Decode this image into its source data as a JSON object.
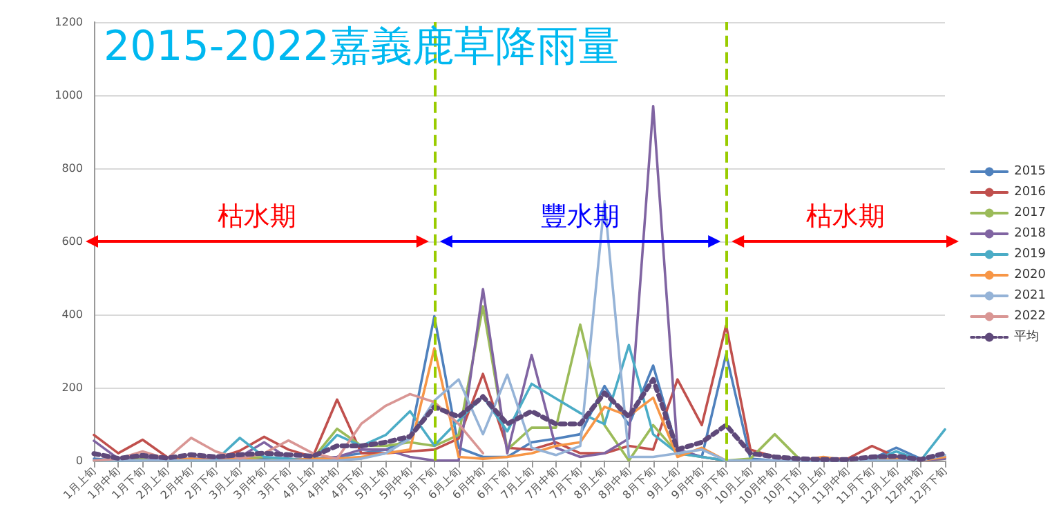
{
  "chart_data": {
    "type": "line",
    "title": "2015-2022嘉義鹿草降雨量",
    "categories": [
      "1月上旬",
      "1月中旬",
      "1月下旬",
      "2月上旬",
      "2月中旬",
      "2月下旬",
      "3月上旬",
      "3月中旬",
      "3月下旬",
      "4月上旬",
      "4月中旬",
      "4月下旬",
      "5月上旬",
      "5月中旬",
      "5月下旬",
      "6月上旬",
      "6月中旬",
      "6月下旬",
      "7月上旬",
      "7月中旬",
      "7月下旬",
      "8月上旬",
      "8月中旬",
      "8月下旬",
      "9月上旬",
      "9月中旬",
      "9月下旬",
      "10月上旬",
      "10月中旬",
      "10月下旬",
      "11月上旬",
      "11月中旬",
      "11月下旬",
      "12月上旬",
      "12月中旬",
      "12月下旬"
    ],
    "series": [
      {
        "name": "2015",
        "color": "#4f81bd",
        "values": [
          5,
          0,
          5,
          0,
          5,
          0,
          10,
          5,
          0,
          5,
          10,
          20,
          30,
          60,
          395,
          35,
          10,
          10,
          50,
          60,
          72,
          204,
          97,
          260,
          29,
          10,
          291,
          5,
          0,
          0,
          0,
          0,
          5,
          35,
          5,
          10
        ]
      },
      {
        "name": "2016",
        "color": "#c0504d",
        "values": [
          70,
          20,
          57,
          10,
          0,
          5,
          27,
          65,
          30,
          10,
          167,
          20,
          20,
          25,
          30,
          60,
          237,
          35,
          30,
          50,
          20,
          20,
          40,
          30,
          222,
          97,
          370,
          30,
          10,
          0,
          5,
          5,
          40,
          10,
          0,
          10
        ]
      },
      {
        "name": "2017",
        "color": "#9bbb59",
        "values": [
          0,
          0,
          5,
          0,
          0,
          0,
          5,
          10,
          0,
          5,
          87,
          40,
          40,
          50,
          40,
          70,
          422,
          30,
          90,
          90,
          372,
          97,
          0,
          97,
          20,
          10,
          0,
          5,
          72,
          5,
          0,
          0,
          0,
          0,
          0,
          5
        ]
      },
      {
        "name": "2018",
        "color": "#8064a2",
        "values": [
          54,
          5,
          10,
          0,
          5,
          5,
          10,
          50,
          5,
          0,
          10,
          30,
          30,
          10,
          0,
          0,
          469,
          20,
          289,
          35,
          10,
          20,
          60,
          970,
          30,
          10,
          0,
          0,
          0,
          0,
          0,
          0,
          0,
          5,
          0,
          5
        ]
      },
      {
        "name": "2019",
        "color": "#4bacc6",
        "values": [
          0,
          0,
          0,
          0,
          0,
          0,
          62,
          10,
          5,
          0,
          70,
          40,
          70,
          135,
          41,
          110,
          175,
          80,
          210,
          170,
          130,
          100,
          316,
          72,
          20,
          10,
          0,
          0,
          0,
          0,
          0,
          0,
          0,
          25,
          0,
          85
        ]
      },
      {
        "name": "2020",
        "color": "#f79646",
        "values": [
          null,
          null,
          0,
          0,
          5,
          0,
          5,
          0,
          0,
          5,
          5,
          10,
          20,
          30,
          307,
          10,
          5,
          10,
          20,
          40,
          50,
          147,
          122,
          172,
          10,
          35,
          0,
          0,
          0,
          0,
          10,
          0,
          0,
          5,
          0,
          10
        ]
      },
      {
        "name": "2021",
        "color": "#95b3d7",
        "values": [
          0,
          0,
          0,
          0,
          0,
          0,
          0,
          0,
          0,
          0,
          0,
          5,
          20,
          60,
          164,
          222,
          72,
          235,
          35,
          15,
          40,
          710,
          10,
          10,
          20,
          30,
          0,
          0,
          0,
          0,
          0,
          0,
          0,
          0,
          0,
          15
        ]
      },
      {
        "name": "2022",
        "color": "#d99694",
        "values": [
          0,
          5,
          25,
          5,
          62,
          25,
          5,
          20,
          55,
          20,
          5,
          101,
          150,
          182,
          160,
          100,
          20,
          null,
          null,
          null,
          null,
          null,
          null,
          null,
          null,
          null,
          null,
          null,
          null,
          null,
          null,
          null,
          null,
          null,
          null,
          null
        ]
      },
      {
        "name": "平均",
        "color": "#5f497a",
        "line_style": "dotted",
        "values": [
          19,
          6,
          14,
          7,
          16,
          10,
          16,
          20,
          16,
          12,
          40,
          40,
          50,
          66,
          147,
          120,
          175,
          100,
          135,
          100,
          100,
          185,
          120,
          222,
          30,
          50,
          97,
          20,
          10,
          5,
          3,
          3,
          10,
          12,
          3,
          20
        ]
      }
    ],
    "ylim": [
      0,
      1200
    ],
    "yticks": [
      0,
      200,
      400,
      600,
      800,
      1000,
      1200
    ],
    "grid": "y",
    "legend": "right",
    "marker": "none",
    "line_style": "solid",
    "ref_lines": [
      {
        "axis": "x",
        "value": "5月下旬",
        "color": "#99cc00",
        "line_style": "dashed"
      },
      {
        "axis": "x",
        "value": "9月下旬",
        "color": "#99cc00",
        "line_style": "dashed"
      }
    ],
    "annotations": [
      "枯水期",
      "豐水期",
      "枯水期"
    ]
  }
}
